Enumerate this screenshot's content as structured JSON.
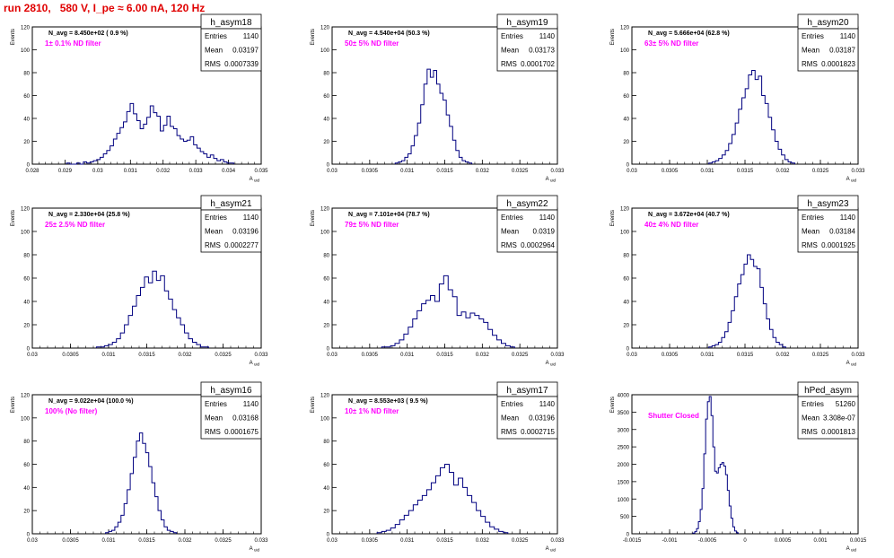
{
  "header": {
    "run_title": "run 2810,   580 V, I_pe ≈ 6.00 nA, 120 Hz"
  },
  "colors": {
    "histogram": "#000080",
    "title": "#e00000",
    "filter_text": "#ff00ff",
    "frame": "#000000"
  },
  "chart_data": [
    {
      "type": "bar",
      "name": "h_asym18",
      "entries": "1140",
      "mean": "0.03197",
      "rms": "0.0007339",
      "navg": "N_avg = 8.450e+02 ( 0.9 %)",
      "filter": "1± 0.1% ND filter",
      "ylabel": "Events",
      "xlabel": "A_uid",
      "xlim": [
        0.028,
        0.035
      ],
      "ylim": [
        0,
        120
      ],
      "xticks": [
        "0.028",
        "0.029",
        "0.03",
        "0.031",
        "0.032",
        "0.033",
        "0.034",
        "0.035"
      ],
      "yticks": [
        "0",
        "20",
        "40",
        "60",
        "80",
        "100",
        "120"
      ],
      "values": [
        1,
        0,
        0,
        1,
        0,
        2,
        1,
        2,
        3,
        4,
        6,
        9,
        12,
        16,
        22,
        27,
        32,
        37,
        46,
        53,
        44,
        38,
        31,
        35,
        41,
        51,
        45,
        42,
        29,
        34,
        42,
        33,
        31,
        25,
        22,
        20,
        21,
        24,
        17,
        14,
        11,
        9,
        6,
        8,
        5,
        3,
        4,
        2,
        1,
        1
      ]
    },
    {
      "type": "bar",
      "name": "h_asym19",
      "entries": "1140",
      "mean": "0.03173",
      "rms": "0.0001702",
      "navg": "N_avg = 4.540e+04 (50.3 %)",
      "filter": "50± 5% ND filter",
      "ylabel": "Events",
      "xlabel": "A_uid",
      "xlim": [
        0.03,
        0.033
      ],
      "ylim": [
        0,
        120
      ],
      "xticks": [
        "0.03",
        "0.0305",
        "0.031",
        "0.0315",
        "0.032",
        "0.0325",
        "0.033"
      ],
      "yticks": [
        "0",
        "20",
        "40",
        "60",
        "80",
        "100",
        "120"
      ],
      "values": [
        1,
        2,
        3,
        6,
        9,
        16,
        25,
        36,
        52,
        70,
        83,
        76,
        82,
        70,
        62,
        56,
        43,
        33,
        21,
        12,
        6,
        3,
        2,
        1
      ]
    },
    {
      "type": "bar",
      "name": "h_asym20",
      "entries": "1140",
      "mean": "0.03187",
      "rms": "0.0001823",
      "navg": "N_avg = 5.666e+04 (62.8 %)",
      "filter": "63± 5% ND filter",
      "ylabel": "Events",
      "xlabel": "A_uid",
      "xlim": [
        0.03,
        0.033
      ],
      "ylim": [
        0,
        120
      ],
      "xticks": [
        "0.03",
        "0.0305",
        "0.031",
        "0.0315",
        "0.032",
        "0.0325",
        "0.033"
      ],
      "yticks": [
        "0",
        "20",
        "40",
        "60",
        "80",
        "100",
        "120"
      ],
      "values": [
        1,
        2,
        3,
        5,
        8,
        12,
        18,
        26,
        36,
        48,
        58,
        66,
        78,
        82,
        74,
        77,
        60,
        53,
        41,
        30,
        20,
        13,
        8,
        4,
        2,
        1
      ]
    },
    {
      "type": "bar",
      "name": "h_asym21",
      "entries": "1140",
      "mean": "0.03196",
      "rms": "0.0002277",
      "navg": "N_avg = 2.330e+04 (25.8 %)",
      "filter": "25± 2.5% ND filter",
      "ylabel": "Events",
      "xlabel": "A_uid",
      "xlim": [
        0.03,
        0.033
      ],
      "ylim": [
        0,
        120
      ],
      "xticks": [
        "0.03",
        "0.0305",
        "0.031",
        "0.0315",
        "0.032",
        "0.0325",
        "0.033"
      ],
      "yticks": [
        "0",
        "20",
        "40",
        "60",
        "80",
        "100",
        "120"
      ],
      "values": [
        1,
        1,
        2,
        3,
        5,
        8,
        13,
        20,
        28,
        36,
        45,
        52,
        61,
        56,
        66,
        58,
        62,
        49,
        42,
        33,
        26,
        20,
        13,
        8,
        5,
        3,
        1,
        1
      ]
    },
    {
      "type": "bar",
      "name": "h_asym22",
      "entries": "1140",
      "mean": "0.0319",
      "rms": "0.0002964",
      "navg": "N_avg = 7.101e+04 (78.7 %)",
      "filter": "79± 5% ND filter",
      "ylabel": "Events",
      "xlabel": "A_uid",
      "xlim": [
        0.03,
        0.033
      ],
      "ylim": [
        0,
        120
      ],
      "xticks": [
        "0.03",
        "0.0305",
        "0.031",
        "0.0315",
        "0.032",
        "0.0325",
        "0.033"
      ],
      "yticks": [
        "0",
        "20",
        "40",
        "60",
        "80",
        "100",
        "120"
      ],
      "values": [
        1,
        1,
        2,
        4,
        7,
        12,
        18,
        25,
        32,
        38,
        41,
        45,
        40,
        55,
        62,
        50,
        44,
        28,
        31,
        26,
        30,
        28,
        25,
        22,
        16,
        11,
        7,
        4,
        2,
        1
      ]
    },
    {
      "type": "bar",
      "name": "h_asym23",
      "entries": "1140",
      "mean": "0.03184",
      "rms": "0.0001925",
      "navg": "N_avg = 3.672e+04 (40.7 %)",
      "filter": "40± 4% ND filter",
      "ylabel": "Events",
      "xlabel": "A_uid",
      "xlim": [
        0.03,
        0.033
      ],
      "ylim": [
        0,
        120
      ],
      "xticks": [
        "0.03",
        "0.0305",
        "0.031",
        "0.0315",
        "0.032",
        "0.0325",
        "0.033"
      ],
      "yticks": [
        "0",
        "20",
        "40",
        "60",
        "80",
        "100",
        "120"
      ],
      "values": [
        1,
        2,
        3,
        5,
        9,
        14,
        22,
        32,
        44,
        55,
        63,
        72,
        80,
        76,
        70,
        68,
        52,
        38,
        25,
        16,
        9,
        5,
        3,
        1
      ]
    },
    {
      "type": "bar",
      "name": "h_asym16",
      "entries": "1140",
      "mean": "0.03168",
      "rms": "0.0001675",
      "navg": "N_avg = 9.022e+04 (100.0 %)",
      "filter": "100% (No filter)",
      "ylabel": "Events",
      "xlabel": "A_uid",
      "xlim": [
        0.03,
        0.033
      ],
      "ylim": [
        0,
        120
      ],
      "xticks": [
        "0.03",
        "0.0305",
        "0.031",
        "0.0315",
        "0.032",
        "0.0325",
        "0.033"
      ],
      "yticks": [
        "0",
        "20",
        "40",
        "60",
        "80",
        "100",
        "120"
      ],
      "values": [
        1,
        2,
        3,
        6,
        10,
        16,
        26,
        38,
        52,
        66,
        80,
        87,
        78,
        70,
        58,
        44,
        32,
        20,
        12,
        6,
        3,
        2,
        1
      ]
    },
    {
      "type": "bar",
      "name": "h_asym17",
      "entries": "1140",
      "mean": "0.03196",
      "rms": "0.0002715",
      "navg": "N_avg = 8.553e+03 ( 9.5 %)",
      "filter": "10± 1% ND filter",
      "ylabel": "Events",
      "xlabel": "A_uid",
      "xlim": [
        0.03,
        0.033
      ],
      "ylim": [
        0,
        120
      ],
      "xticks": [
        "0.03",
        "0.0305",
        "0.031",
        "0.0315",
        "0.032",
        "0.0325",
        "0.033"
      ],
      "yticks": [
        "0",
        "20",
        "40",
        "60",
        "80",
        "100",
        "120"
      ],
      "values": [
        1,
        2,
        3,
        5,
        8,
        12,
        16,
        20,
        25,
        29,
        33,
        38,
        44,
        50,
        57,
        60,
        53,
        42,
        48,
        40,
        33,
        27,
        20,
        15,
        10,
        6,
        4,
        2,
        1
      ]
    },
    {
      "type": "bar",
      "name": "hPed_asym",
      "entries": "51260",
      "mean": "3.308e-07",
      "rms": "0.0001813",
      "navg": "",
      "filter": "Shutter Closed",
      "ylabel": "Events",
      "xlabel": "A_uid",
      "xlim": [
        -0.0015,
        0.0015
      ],
      "ylim": [
        0,
        4000
      ],
      "xticks": [
        "-0.0015",
        "-0.001",
        "-0.0005",
        "0",
        "0.0005",
        "0.001",
        "0.0015"
      ],
      "yticks": [
        "0",
        "500",
        "1000",
        "1500",
        "2000",
        "2500",
        "3000",
        "3500",
        "4000"
      ],
      "values": [
        20,
        60,
        150,
        350,
        700,
        1300,
        2300,
        3300,
        3800,
        3950,
        3400,
        2500,
        1800,
        1750,
        1900,
        2000,
        2050,
        1950,
        1700,
        1250,
        800,
        450,
        200,
        80,
        30
      ]
    }
  ]
}
